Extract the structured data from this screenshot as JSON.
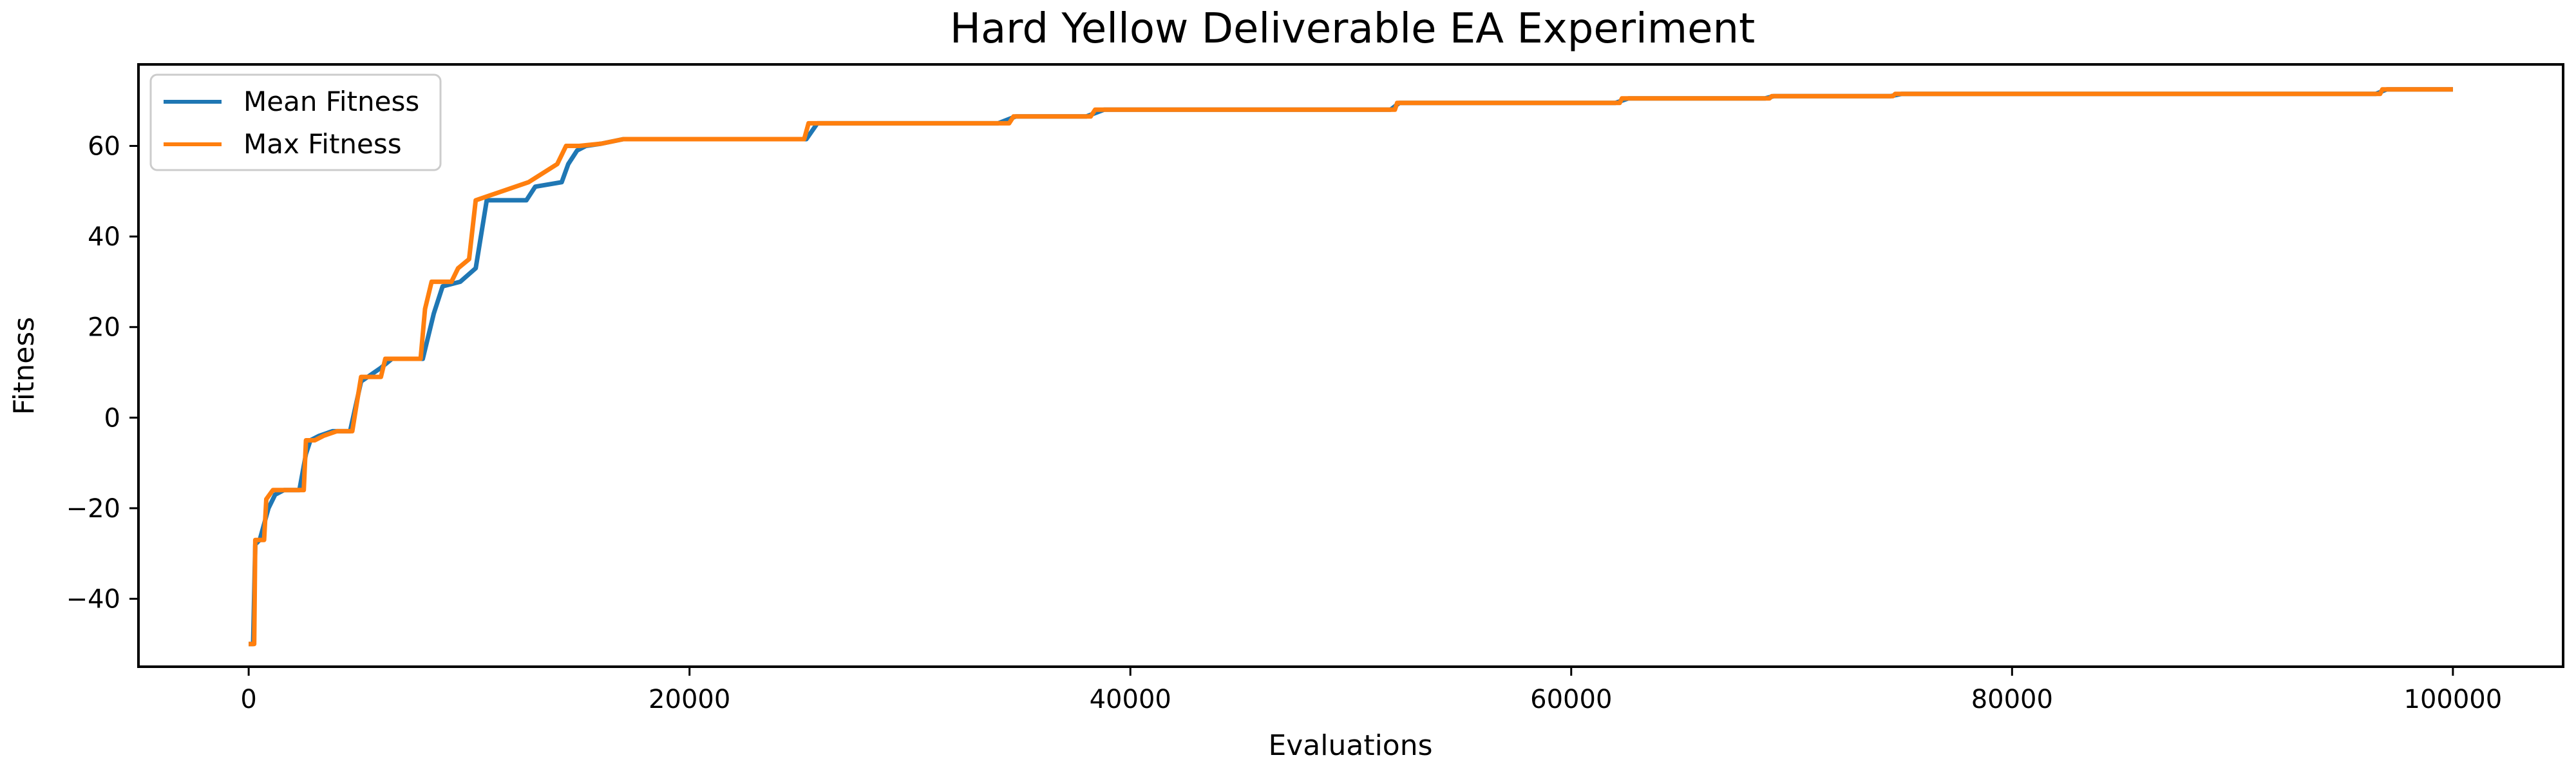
{
  "chart_data": {
    "type": "line",
    "title": "Hard Yellow Deliverable EA Experiment",
    "xlabel": "Evaluations",
    "ylabel": "Fitness",
    "xlim": [
      -5000,
      105000
    ],
    "ylim": [
      -55,
      78
    ],
    "xticks": [
      0,
      20000,
      40000,
      60000,
      80000,
      100000
    ],
    "xtick_labels": [
      "0",
      "20000",
      "40000",
      "60000",
      "80000",
      "100000"
    ],
    "yticks": [
      -40,
      -20,
      0,
      20,
      40,
      60
    ],
    "ytick_labels": [
      "−40",
      "−20",
      "0",
      "20",
      "40",
      "60"
    ],
    "grid": false,
    "legend_position": "top-left",
    "colors": {
      "mean": "#1f77b4",
      "max": "#ff7f0e"
    },
    "series": [
      {
        "name": "Mean Fitness",
        "color": "#1f77b4",
        "x": [
          0,
          200,
          300,
          500,
          900,
          1200,
          1600,
          2300,
          2600,
          2800,
          3200,
          3800,
          4600,
          5100,
          5400,
          6000,
          6500,
          7900,
          8400,
          8800,
          9600,
          10300,
          10800,
          12600,
          13000,
          14200,
          14500,
          14900,
          15300,
          16000,
          17000,
          25300,
          25800,
          34000,
          34800,
          38000,
          38800,
          51800,
          52200,
          62000,
          62600,
          68800,
          69200,
          74500,
          75000,
          96500,
          97000,
          100000
        ],
        "y": [
          -50,
          -50,
          -28,
          -27,
          -20,
          -17,
          -16,
          -16,
          -8,
          -5,
          -4,
          -3,
          -3,
          8,
          9,
          11,
          13,
          13,
          23,
          29,
          30,
          33,
          48,
          48,
          51,
          52,
          56,
          59,
          60,
          60.5,
          61.5,
          61.5,
          65,
          65,
          66.5,
          66.5,
          68,
          68,
          69.5,
          69.5,
          70.5,
          70.5,
          71,
          71,
          71.5,
          71.5,
          72.5,
          72.5
        ]
      },
      {
        "name": "Max Fitness",
        "color": "#ff7f0e",
        "x": [
          0,
          250,
          300,
          700,
          800,
          1100,
          1500,
          2500,
          2600,
          3000,
          3400,
          4000,
          4700,
          4900,
          5100,
          6000,
          6200,
          7800,
          8000,
          8300,
          9200,
          9500,
          10000,
          10300,
          12700,
          14000,
          14400,
          15000,
          16000,
          17000,
          25200,
          25400,
          34500,
          34700,
          38200,
          38400,
          52000,
          52100,
          62200,
          62300,
          69000,
          69100,
          74600,
          74700,
          96700,
          96800,
          100000
        ],
        "y": [
          -50,
          -50,
          -27,
          -27,
          -18,
          -16,
          -16,
          -16,
          -5,
          -5,
          -4,
          -3,
          -3,
          3,
          9,
          9,
          13,
          13,
          24,
          30,
          30,
          33,
          35,
          48,
          52,
          56,
          60,
          60,
          60.5,
          61.5,
          61.5,
          65,
          65,
          66.5,
          66.5,
          68,
          68,
          69.5,
          69.5,
          70.5,
          70.5,
          71,
          71,
          71.5,
          71.5,
          72.5,
          72.5
        ]
      }
    ]
  }
}
